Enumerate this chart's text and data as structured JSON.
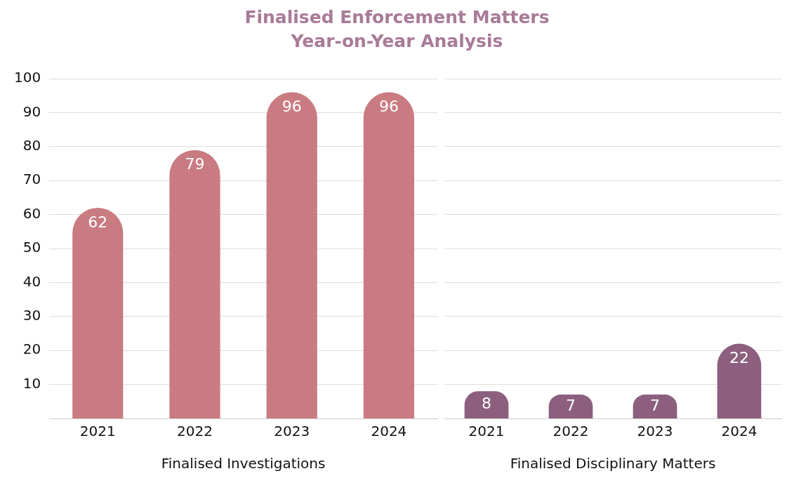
{
  "chart_data": [
    {
      "type": "bar",
      "title": "Finalised Enforcement Matters\nYear-on-Year Analysis",
      "xlabel": "Finalised Investigations",
      "categories": [
        "2021",
        "2022",
        "2023",
        "2024"
      ],
      "values": [
        62,
        79,
        96,
        96
      ],
      "color": "#c97b81",
      "data_labels": true,
      "ylim": [
        0,
        100
      ],
      "yticks": [
        10,
        20,
        30,
        40,
        50,
        60,
        70,
        80,
        90,
        100
      ],
      "grid": "y"
    },
    {
      "type": "bar",
      "xlabel": "Finalised Disciplinary Matters",
      "categories": [
        "2021",
        "2022",
        "2023",
        "2024"
      ],
      "values": [
        8,
        7,
        7,
        22
      ],
      "color": "#8c5f7e",
      "data_labels": true,
      "ylim": [
        0,
        100
      ],
      "yticks": [
        10,
        20,
        30,
        40,
        50,
        60,
        70,
        80,
        90,
        100
      ],
      "grid": "y",
      "tick_labels": "x"
    }
  ]
}
